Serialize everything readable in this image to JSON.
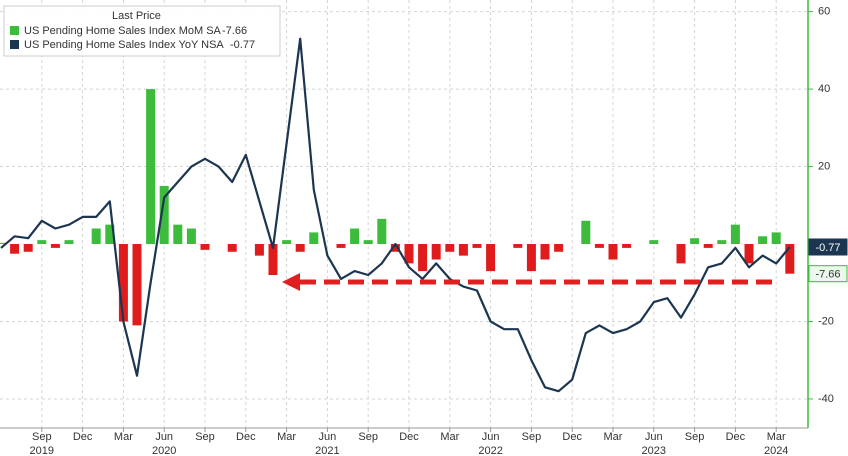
{
  "chart_data": {
    "type": "combo",
    "legend_title": "Last Price",
    "x": [
      null,
      null,
      null,
      "Sep",
      null,
      null,
      "Dec",
      null,
      null,
      "Mar",
      null,
      null,
      "Jun",
      null,
      null,
      "Sep",
      null,
      null,
      "Dec",
      null,
      null,
      "Mar",
      null,
      null,
      "Jun",
      null,
      null,
      "Sep",
      null,
      null,
      "Dec",
      null,
      null,
      "Mar",
      null,
      null,
      "Jun",
      null,
      null,
      "Sep",
      null,
      null,
      "Dec",
      null,
      null,
      "Mar",
      null,
      null,
      "Jun",
      null,
      null,
      "Sep",
      null,
      null,
      "Dec",
      null,
      null,
      "Mar",
      null
    ],
    "year_labels": [
      null,
      null,
      null,
      "2019",
      null,
      null,
      null,
      null,
      null,
      null,
      null,
      null,
      "2020",
      null,
      null,
      null,
      null,
      null,
      null,
      null,
      null,
      null,
      null,
      null,
      "2021",
      null,
      null,
      null,
      null,
      null,
      null,
      null,
      null,
      null,
      null,
      null,
      "2022",
      null,
      null,
      null,
      null,
      null,
      null,
      null,
      null,
      null,
      null,
      null,
      "2023",
      null,
      null,
      null,
      null,
      null,
      null,
      null,
      null,
      "2024",
      null
    ],
    "series": [
      {
        "name": "US Pending Home Sales Index MoM SA",
        "type": "bar",
        "color": "#3dbb3d",
        "negative_color": "#e01b1b",
        "values": [
          0.3,
          -2.5,
          -2,
          1,
          -1,
          1,
          0,
          4,
          5,
          -20,
          -21,
          40,
          15,
          5,
          4,
          -1.5,
          0,
          -2,
          0,
          -3,
          -8,
          1,
          -2,
          3,
          0,
          -1,
          4,
          1,
          6.5,
          -2,
          -5,
          -7,
          -4,
          -2,
          -3,
          -1,
          -7,
          0,
          -1,
          -7,
          -4,
          -2,
          0,
          6,
          -1,
          -4,
          -1,
          0,
          1,
          0,
          -5,
          1.5,
          -1,
          1,
          5,
          -5,
          2,
          3,
          -7.66
        ]
      },
      {
        "name": "US Pending Home Sales Index YoY NSA",
        "type": "line",
        "color": "#1c3550",
        "values": [
          -1,
          2,
          1.5,
          6,
          4,
          5,
          7,
          7,
          11,
          -20,
          -34,
          -10,
          12,
          16,
          20,
          22,
          20,
          16,
          23,
          11,
          -1,
          26,
          53,
          14,
          -3,
          -9,
          -7,
          -8,
          -5,
          0,
          -6,
          -9,
          -5,
          -9,
          -11,
          -12,
          -20,
          -22,
          -22,
          -30,
          -37,
          -38,
          -35,
          -23,
          -21,
          -23,
          -22,
          -20,
          -15,
          -14,
          -19,
          -13,
          -6,
          -5,
          -1,
          -6,
          -3,
          -5,
          -0.77
        ]
      }
    ],
    "ylim": [
      -47.5,
      63
    ],
    "yticks": [
      60,
      40,
      20,
      -20,
      -40
    ],
    "grid": true
  }
}
